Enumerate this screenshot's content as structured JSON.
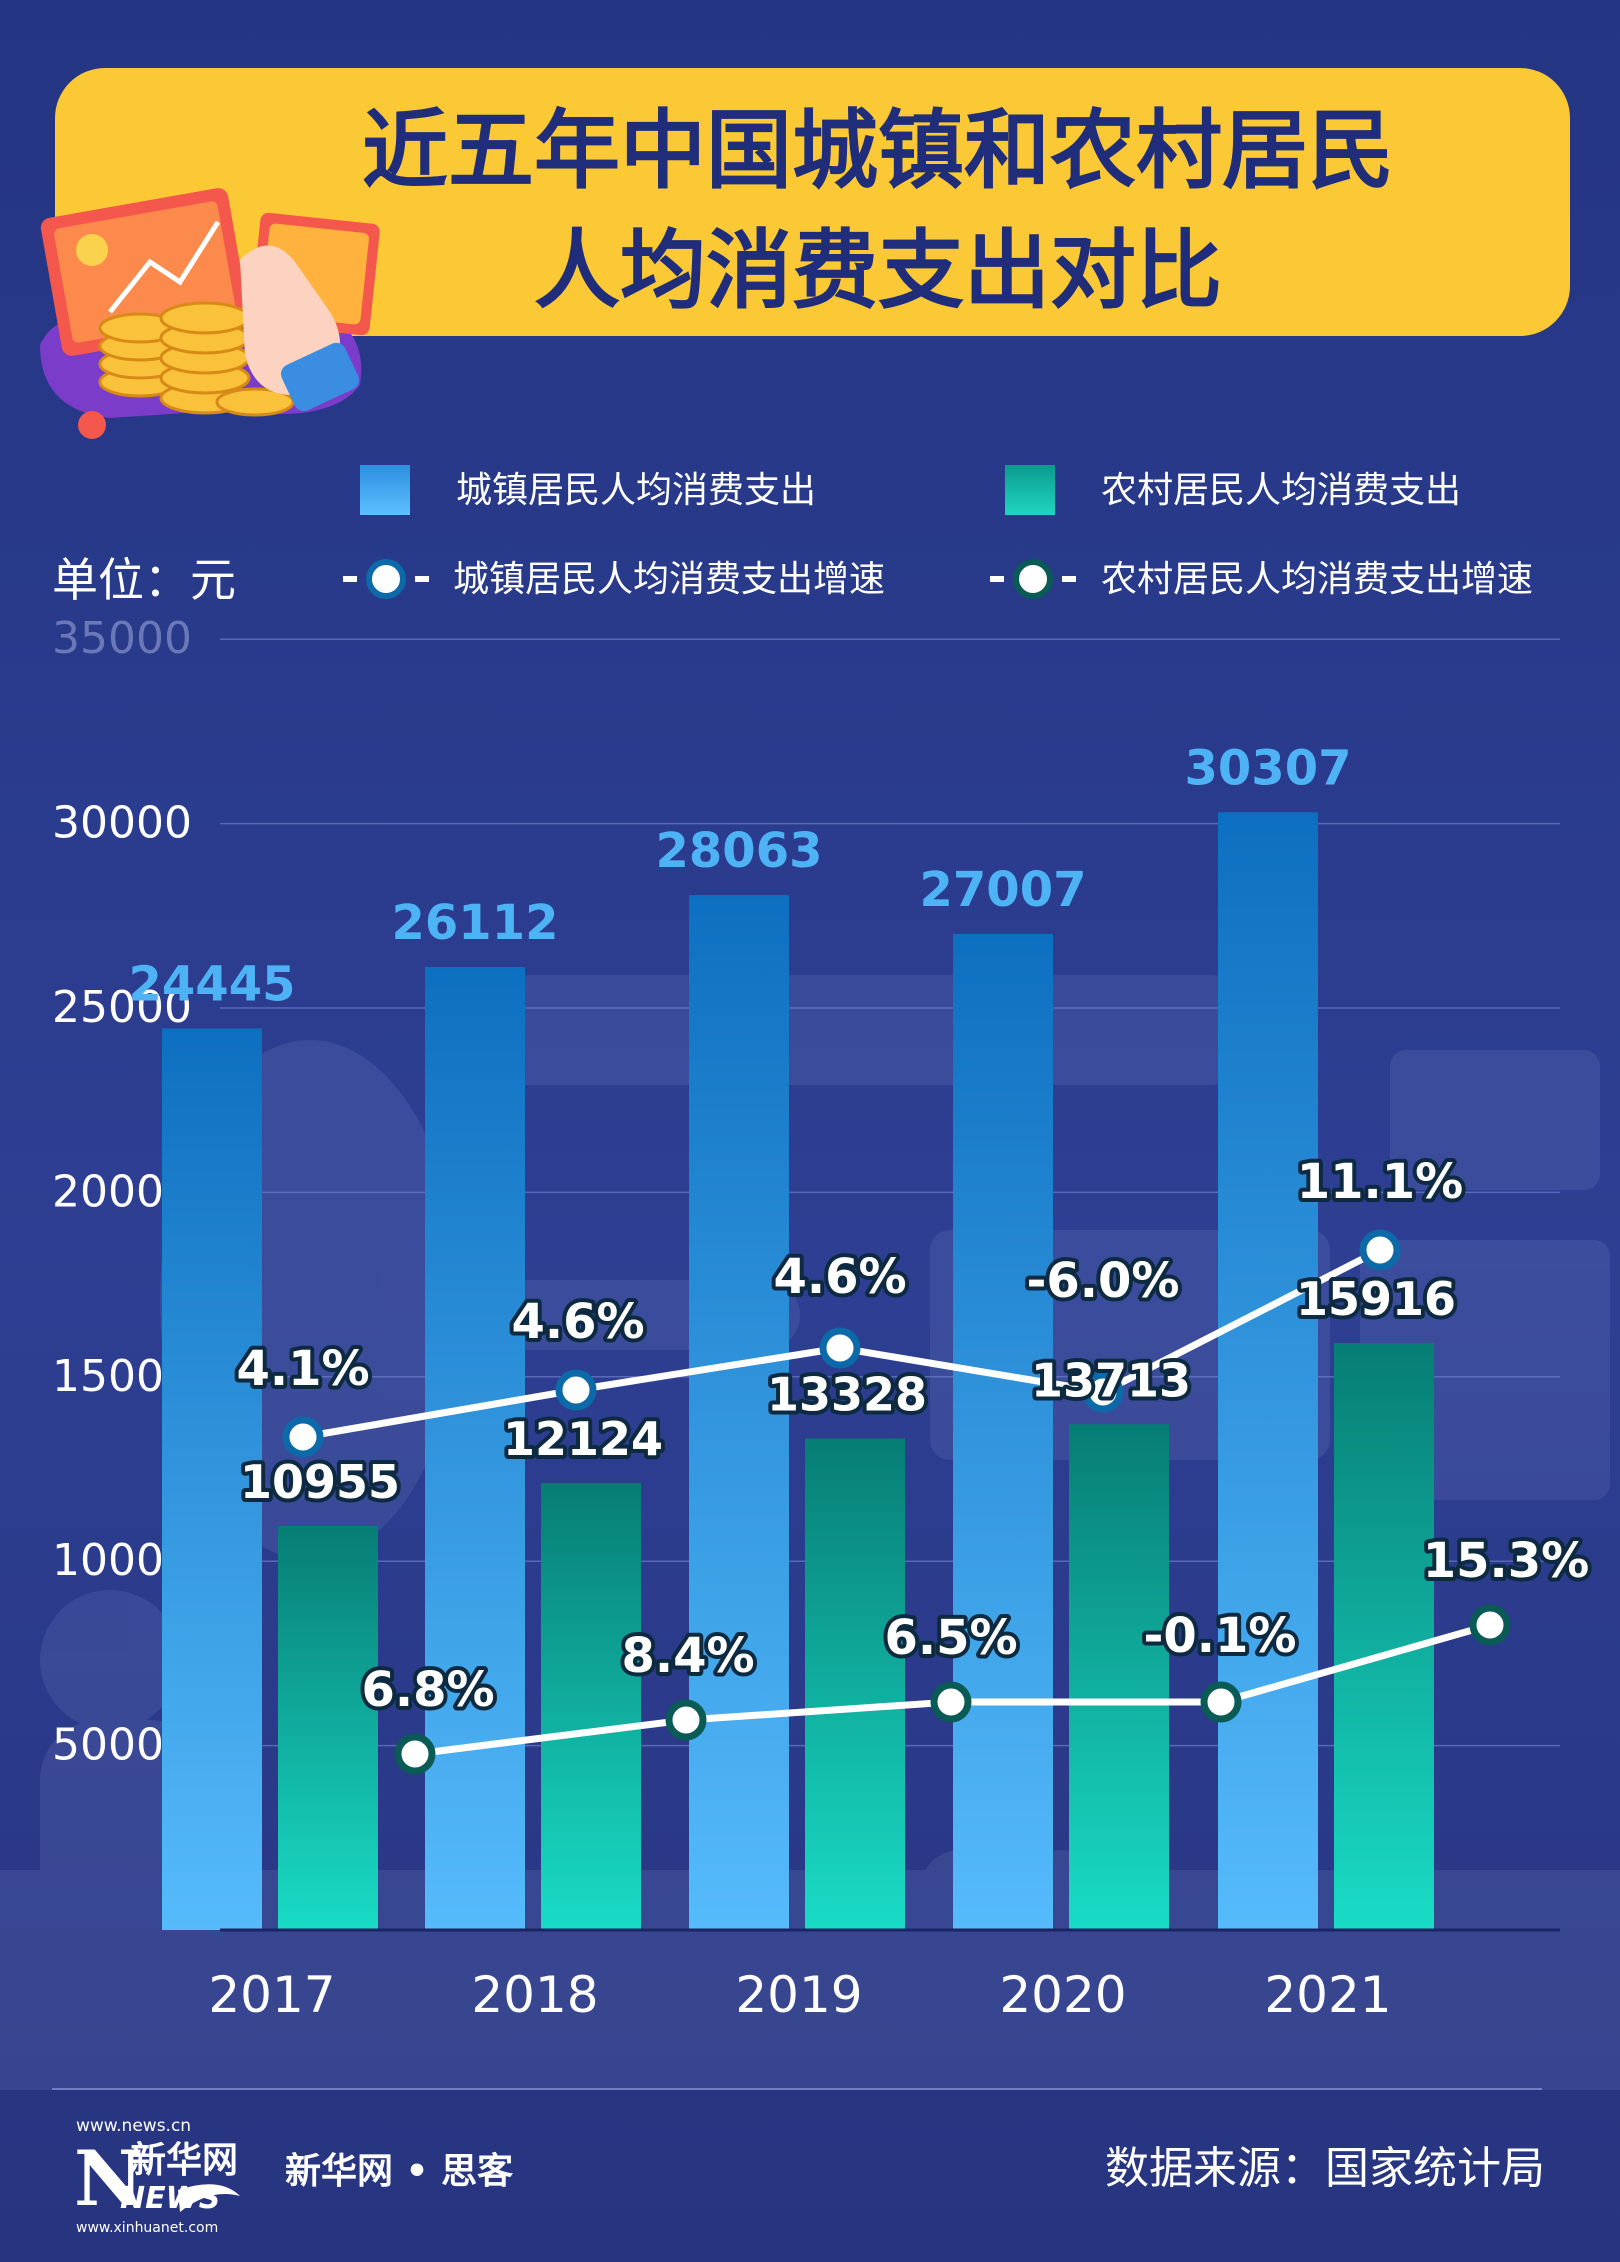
{
  "title": {
    "line1": "近五年中国城镇和农村居民",
    "line2": "人均消费支出对比"
  },
  "unit_label": "单位：元",
  "legend": {
    "urban_bar": "城镇居民人均消费支出",
    "rural_bar": "农村居民人均消费支出",
    "urban_line": "城镇居民人均消费支出增速",
    "rural_line": "农村居民人均消费支出增速"
  },
  "footer": {
    "brand_text": "新华网 • 思客",
    "source": "数据来源：国家统计局",
    "logo_url_top": "www.news.cn",
    "logo_chars": "新华网",
    "logo_letters": "NEWS",
    "logo_url_bottom": "www.xinhuanet.com"
  },
  "colors": {
    "background": "#2b3a8c",
    "title_banner": "#fbc935",
    "title_text": "#1f2d7a",
    "urban_bar": "#49a8ee",
    "rural_bar": "#19c9b6",
    "urban_label": "#4eb3f4",
    "urban_line_marker_ring": "#0d6aa8",
    "rural_line_marker_ring": "#0a5a55"
  },
  "chart_data": {
    "type": "bar",
    "categories": [
      "2017",
      "2018",
      "2019",
      "2020",
      "2021"
    ],
    "ylim": [
      0,
      35000
    ],
    "yticks": [
      5000,
      10000,
      15000,
      20000,
      25000,
      30000,
      35000
    ],
    "grid": true,
    "series": [
      {
        "name": "城镇居民人均消费支出",
        "kind": "bar",
        "values": [
          24445,
          26112,
          28063,
          27007,
          30307
        ],
        "labels": [
          "24445",
          "26112",
          "28063",
          "27007",
          "30307"
        ]
      },
      {
        "name": "农村居民人均消费支出",
        "kind": "bar",
        "values": [
          10955,
          12124,
          13328,
          13713,
          15916
        ],
        "labels": [
          "10955",
          "12124",
          "13328",
          "13713",
          "15916"
        ]
      },
      {
        "name": "城镇居民人均消费支出增速",
        "kind": "line",
        "values": [
          4.1,
          4.6,
          4.6,
          -6.0,
          11.1
        ],
        "labels": [
          "4.1%",
          "4.6%",
          "4.6%",
          "-6.0%",
          "11.1%"
        ]
      },
      {
        "name": "农村居民人均消费支出增速",
        "kind": "line",
        "values": [
          6.8,
          8.4,
          6.5,
          -0.1,
          15.3
        ],
        "labels": [
          "6.8%",
          "8.4%",
          "6.5%",
          "-0.1%",
          "15.3%"
        ]
      }
    ]
  }
}
